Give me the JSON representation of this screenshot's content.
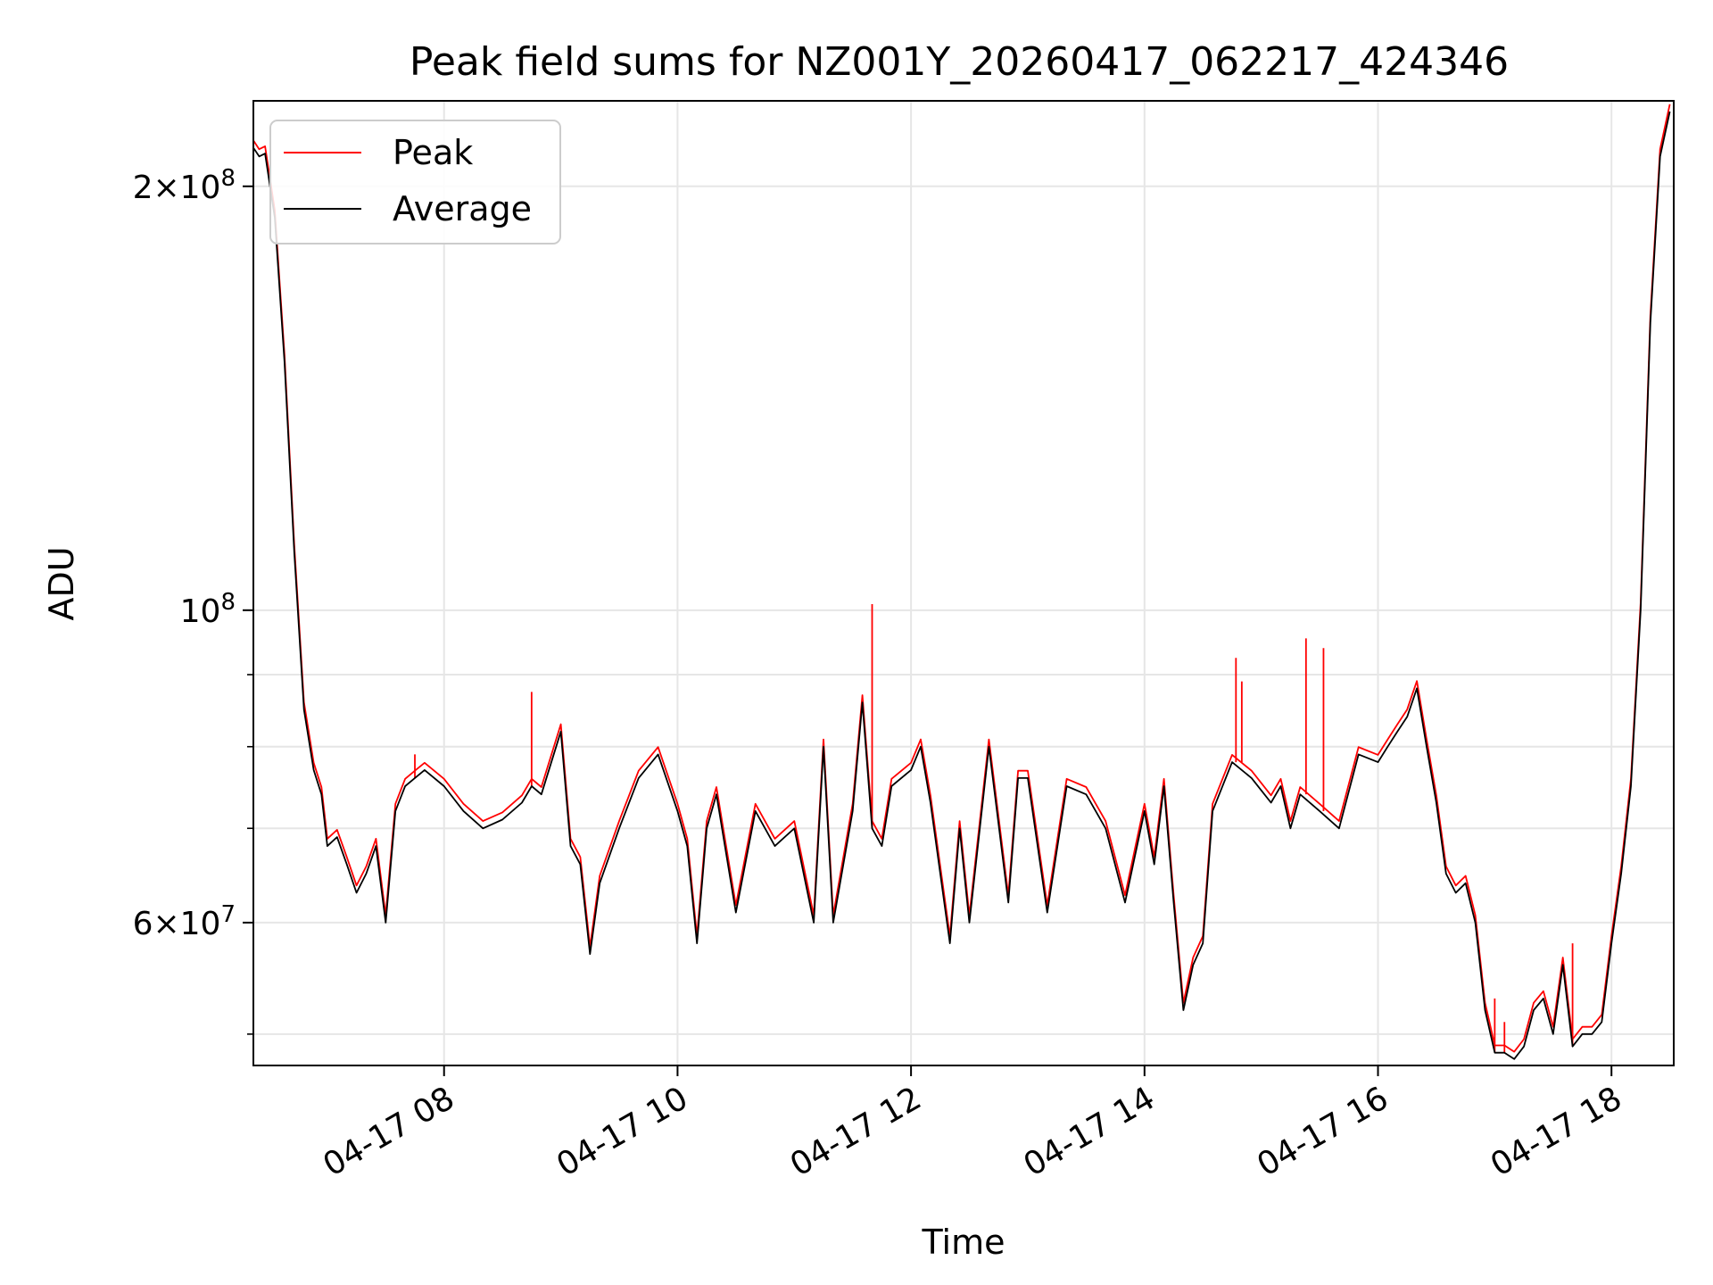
{
  "chart_data": {
    "type": "line",
    "title": "Peak field sums for NZ001Y_20260417_062217_424346",
    "xlabel": "Time",
    "ylabel": "ADU",
    "yscale": "log",
    "grid": true,
    "legend_position": "top-left",
    "xlim": [
      "2026-04-17 06:22",
      "2026-04-17 18:32"
    ],
    "ylim": [
      47500000,
      230000000
    ],
    "x_ticks": [
      {
        "t": "2026-04-17 08:00",
        "label": "04-17 08"
      },
      {
        "t": "2026-04-17 10:00",
        "label": "04-17 10"
      },
      {
        "t": "2026-04-17 12:00",
        "label": "04-17 12"
      },
      {
        "t": "2026-04-17 14:00",
        "label": "04-17 14"
      },
      {
        "t": "2026-04-17 16:00",
        "label": "04-17 16"
      },
      {
        "t": "2026-04-17 18:00",
        "label": "04-17 18"
      }
    ],
    "y_major_ticks": [
      {
        "value": 60000000,
        "mantissa": "6",
        "exponent": "7"
      },
      {
        "value": 100000000,
        "mantissa": "",
        "exponent": "8"
      },
      {
        "value": 200000000,
        "mantissa": "2",
        "exponent": "8"
      }
    ],
    "y_minor_ticks": [
      50000000,
      70000000,
      80000000,
      90000000
    ],
    "series": [
      {
        "name": "Peak",
        "color": "#ff0000"
      },
      {
        "name": "Average",
        "color": "#000000"
      }
    ],
    "x": [
      "2026-04-17 06:22",
      "2026-04-17 06:25",
      "2026-04-17 06:28",
      "2026-04-17 06:33",
      "2026-04-17 06:38",
      "2026-04-17 06:43",
      "2026-04-17 06:48",
      "2026-04-17 06:53",
      "2026-04-17 06:57",
      "2026-04-17 07:00",
      "2026-04-17 07:05",
      "2026-04-17 07:10",
      "2026-04-17 07:15",
      "2026-04-17 07:20",
      "2026-04-17 07:25",
      "2026-04-17 07:30",
      "2026-04-17 07:35",
      "2026-04-17 07:40",
      "2026-04-17 07:45",
      "2026-04-17 07:50",
      "2026-04-17 08:00",
      "2026-04-17 08:10",
      "2026-04-17 08:20",
      "2026-04-17 08:30",
      "2026-04-17 08:40",
      "2026-04-17 08:45",
      "2026-04-17 08:50",
      "2026-04-17 09:00",
      "2026-04-17 09:05",
      "2026-04-17 09:10",
      "2026-04-17 09:15",
      "2026-04-17 09:20",
      "2026-04-17 09:30",
      "2026-04-17 09:40",
      "2026-04-17 09:50",
      "2026-04-17 10:00",
      "2026-04-17 10:05",
      "2026-04-17 10:10",
      "2026-04-17 10:15",
      "2026-04-17 10:20",
      "2026-04-17 10:30",
      "2026-04-17 10:40",
      "2026-04-17 10:50",
      "2026-04-17 11:00",
      "2026-04-17 11:10",
      "2026-04-17 11:15",
      "2026-04-17 11:20",
      "2026-04-17 11:30",
      "2026-04-17 11:35",
      "2026-04-17 11:40",
      "2026-04-17 11:45",
      "2026-04-17 11:50",
      "2026-04-17 12:00",
      "2026-04-17 12:05",
      "2026-04-17 12:10",
      "2026-04-17 12:20",
      "2026-04-17 12:25",
      "2026-04-17 12:30",
      "2026-04-17 12:40",
      "2026-04-17 12:50",
      "2026-04-17 12:55",
      "2026-04-17 13:00",
      "2026-04-17 13:10",
      "2026-04-17 13:20",
      "2026-04-17 13:30",
      "2026-04-17 13:40",
      "2026-04-17 13:50",
      "2026-04-17 14:00",
      "2026-04-17 14:05",
      "2026-04-17 14:10",
      "2026-04-17 14:15",
      "2026-04-17 14:20",
      "2026-04-17 14:25",
      "2026-04-17 14:30",
      "2026-04-17 14:35",
      "2026-04-17 14:45",
      "2026-04-17 14:55",
      "2026-04-17 15:05",
      "2026-04-17 15:10",
      "2026-04-17 15:15",
      "2026-04-17 15:20",
      "2026-04-17 15:30",
      "2026-04-17 15:40",
      "2026-04-17 15:50",
      "2026-04-17 16:00",
      "2026-04-17 16:05",
      "2026-04-17 16:10",
      "2026-04-17 16:15",
      "2026-04-17 16:20",
      "2026-04-17 16:25",
      "2026-04-17 16:30",
      "2026-04-17 16:35",
      "2026-04-17 16:40",
      "2026-04-17 16:45",
      "2026-04-17 16:50",
      "2026-04-17 16:55",
      "2026-04-17 17:00",
      "2026-04-17 17:05",
      "2026-04-17 17:10",
      "2026-04-17 17:15",
      "2026-04-17 17:20",
      "2026-04-17 17:25",
      "2026-04-17 17:30",
      "2026-04-17 17:35",
      "2026-04-17 17:40",
      "2026-04-17 17:45",
      "2026-04-17 17:50",
      "2026-04-17 17:55",
      "2026-04-17 18:00",
      "2026-04-17 18:05",
      "2026-04-17 18:10",
      "2026-04-17 18:15",
      "2026-04-17 18:20",
      "2026-04-17 18:25",
      "2026-04-17 18:30"
    ],
    "average": [
      213000000,
      210000000,
      211000000,
      190000000,
      150000000,
      110000000,
      85000000,
      77000000,
      74000000,
      68000000,
      69000000,
      66000000,
      63000000,
      65000000,
      68000000,
      60000000,
      72000000,
      75000000,
      76000000,
      77000000,
      75000000,
      72000000,
      70000000,
      71000000,
      73000000,
      75000000,
      74000000,
      82000000,
      68000000,
      66000000,
      57000000,
      64000000,
      70000000,
      76000000,
      79000000,
      72000000,
      68000000,
      58000000,
      70000000,
      74000000,
      61000000,
      72000000,
      68000000,
      70000000,
      60000000,
      80000000,
      60000000,
      72000000,
      86000000,
      70000000,
      68000000,
      75000000,
      77000000,
      80000000,
      73000000,
      58000000,
      70000000,
      60000000,
      80000000,
      62000000,
      76000000,
      76000000,
      61000000,
      75000000,
      74000000,
      70000000,
      62000000,
      72000000,
      66000000,
      75000000,
      62000000,
      52000000,
      56000000,
      58000000,
      72000000,
      78000000,
      76000000,
      73000000,
      75000000,
      70000000,
      74000000,
      72000000,
      70000000,
      79000000,
      78000000,
      80000000,
      82000000,
      84000000,
      88000000,
      80000000,
      73000000,
      65000000,
      63000000,
      64000000,
      60000000,
      52000000,
      48500000,
      48500000,
      48000000,
      49000000,
      52000000,
      53000000,
      50000000,
      56000000,
      49000000,
      50000000,
      50000000,
      51000000,
      58000000,
      65000000,
      75000000,
      100000000,
      160000000,
      210000000,
      226000000
    ],
    "peak_spikes": [
      {
        "t": "2026-04-17 07:45",
        "value": 79000000
      },
      {
        "t": "2026-04-17 08:45",
        "value": 87500000
      },
      {
        "t": "2026-04-17 11:40",
        "value": 101000000
      },
      {
        "t": "2026-04-17 14:47",
        "value": 92500000
      },
      {
        "t": "2026-04-17 14:50",
        "value": 89000000
      },
      {
        "t": "2026-04-17 15:23",
        "value": 95500000
      },
      {
        "t": "2026-04-17 15:32",
        "value": 94000000
      },
      {
        "t": "2026-04-17 17:00",
        "value": 53000000
      },
      {
        "t": "2026-04-17 17:05",
        "value": 51000000
      },
      {
        "t": "2026-04-17 17:40",
        "value": 58000000
      }
    ]
  }
}
